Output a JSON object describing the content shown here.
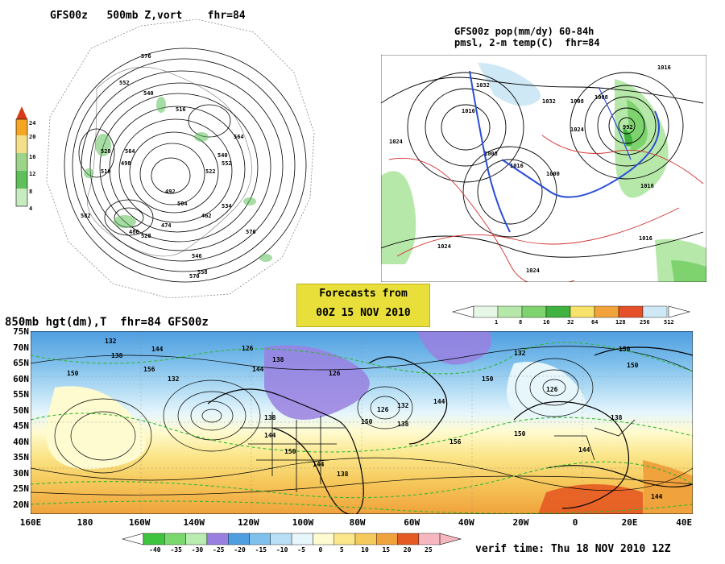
{
  "top_left": {
    "title": "GFS00z   500mb Z,vort    fhr=84",
    "colorbar_ticks": [
      "24",
      "20",
      "16",
      "12",
      "8",
      "4"
    ],
    "colorbar_colors": [
      "#d73a16",
      "#f5a623",
      "#f4e08a",
      "#9ed38a",
      "#5fbf5a",
      "#2e9e3a"
    ],
    "contour_labels": [
      "576",
      "552",
      "540",
      "516",
      "564",
      "528",
      "492",
      "504",
      "462",
      "474",
      "486",
      "498",
      "510",
      "522",
      "534",
      "546",
      "558",
      "570",
      "582",
      "576",
      "564",
      "540",
      "528",
      "552"
    ]
  },
  "top_right": {
    "title_line1": "GFS00z pop(mm/dy) 60-84h",
    "title_line2": "pmsl, 2-m temp(C)  fhr=84",
    "colorbar_ticks": [
      "1",
      "8",
      "16",
      "32",
      "64",
      "128",
      "256",
      "512"
    ],
    "colorbar_colors": [
      "#e6f7e6",
      "#b6e8a9",
      "#7ed36f",
      "#3fb23f",
      "#f7e26b",
      "#f2a23a",
      "#e5502a",
      "#cfe8f5"
    ],
    "contour_labels": [
      "1024",
      "1032",
      "1016",
      "1008",
      "1032",
      "1024",
      "1000",
      "1016",
      "992",
      "1016",
      "1008",
      "1016",
      "1024",
      "1024",
      "1016",
      "1008"
    ]
  },
  "forecasts_box": {
    "line1": "Forecasts from",
    "line2": "00Z 15 NOV 2010"
  },
  "bottom": {
    "title": "850mb hgt(dm),T  fhr=84 GFS00z",
    "lat_labels": [
      "75N",
      "70N",
      "65N",
      "60N",
      "55N",
      "50N",
      "45N",
      "40N",
      "35N",
      "30N",
      "25N",
      "20N"
    ],
    "lon_labels": [
      "160E",
      "180",
      "160W",
      "140W",
      "120W",
      "100W",
      "80W",
      "60W",
      "40W",
      "20W",
      "0",
      "20E",
      "40E"
    ],
    "contour_labels": [
      "132",
      "138",
      "144",
      "150",
      "156",
      "126",
      "138",
      "144",
      "132",
      "126",
      "138",
      "144",
      "150",
      "126",
      "132",
      "138",
      "144",
      "150",
      "156",
      "150",
      "144",
      "138",
      "132",
      "126",
      "150",
      "144",
      "138",
      "150",
      "150",
      "144"
    ],
    "colorbar_ticks": [
      "-40",
      "-35",
      "-30",
      "-25",
      "-20",
      "-15",
      "-10",
      "-5",
      "0",
      "5",
      "10",
      "15",
      "20",
      "25"
    ],
    "colorbar_colors": [
      "#3ec43e",
      "#7bd86e",
      "#b8ecb0",
      "#9a80e0",
      "#4f9ee0",
      "#7fc0ec",
      "#b8dff5",
      "#e6f6fb",
      "#fffbd0",
      "#fbe68a",
      "#f6c95c",
      "#f0a23c",
      "#e55a22",
      "#f7b7c0"
    ],
    "verif_time": "verif time: Thu 18 NOV 2010 12Z"
  }
}
